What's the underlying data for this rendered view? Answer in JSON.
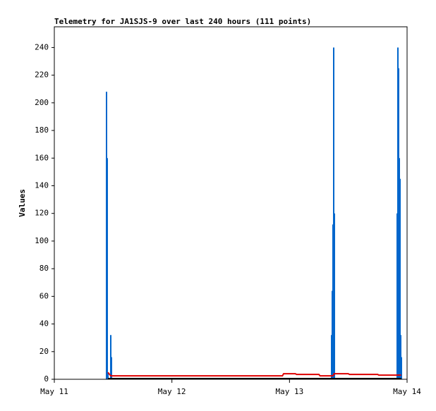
{
  "chart_data": {
    "type": "line",
    "title": "Telemetry for JA1SJS-9 over last 240 hours (111 points)",
    "ylabel": "Values",
    "xlim": [
      11,
      14
    ],
    "xticks": [
      {
        "value": 11,
        "label": "May 11"
      },
      {
        "value": 12,
        "label": "May 12"
      },
      {
        "value": 13,
        "label": "May 13"
      },
      {
        "value": 14,
        "label": "May 14"
      }
    ],
    "ylim": [
      0,
      255
    ],
    "yticks": [
      0,
      20,
      40,
      60,
      80,
      100,
      120,
      140,
      160,
      180,
      200,
      220,
      240
    ],
    "series": [
      {
        "type": "bar",
        "color": "#0066cc",
        "x": [
          11.444,
          11.45,
          11.456,
          11.48,
          11.486,
          13.358,
          13.364,
          13.37,
          13.376,
          13.382,
          13.916,
          13.922,
          13.928,
          13.934,
          13.94,
          13.946,
          13.952
        ],
        "values": [
          208,
          160,
          5,
          32,
          16,
          32,
          64,
          112,
          240,
          120,
          120,
          240,
          225,
          160,
          145,
          32,
          16
        ]
      },
      {
        "type": "line",
        "color": "#dd0000",
        "x": [
          11.456,
          11.48,
          12.94,
          12.95,
          13.05,
          13.06,
          13.25,
          13.26,
          13.37,
          13.38,
          13.5,
          13.51,
          13.75,
          13.76,
          13.95
        ],
        "values": [
          5,
          2.5,
          2.5,
          4,
          4,
          3.5,
          3.5,
          2.5,
          2.5,
          4,
          4,
          3.5,
          3.5,
          3,
          3
        ]
      },
      {
        "type": "line",
        "color": "#000000",
        "x": [
          11.456,
          13.95
        ],
        "values": [
          0.5,
          0.5
        ]
      }
    ]
  }
}
